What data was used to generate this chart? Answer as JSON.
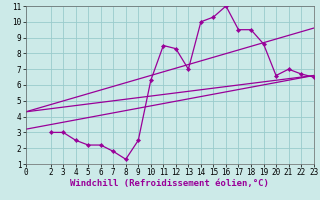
{
  "title": "",
  "xlabel": "Windchill (Refroidissement éolien,°C)",
  "ylabel": "",
  "bg_color": "#cceae8",
  "grid_color": "#99cccc",
  "line_color": "#990099",
  "data_x": [
    2,
    3,
    4,
    5,
    6,
    7,
    8,
    9,
    10,
    11,
    12,
    13,
    14,
    15,
    16,
    17,
    18,
    19,
    20,
    21,
    22,
    23
  ],
  "data_y": [
    3.0,
    3.0,
    2.5,
    2.2,
    2.2,
    1.8,
    1.3,
    2.5,
    6.3,
    8.5,
    8.3,
    7.0,
    10.0,
    10.3,
    11.0,
    9.5,
    9.5,
    8.6,
    6.6,
    7.0,
    6.7,
    6.5
  ],
  "line1_x": [
    0,
    23
  ],
  "line1_y": [
    4.3,
    9.6
  ],
  "line2_x": [
    0,
    23
  ],
  "line2_y": [
    4.3,
    6.6
  ],
  "line3_x": [
    0,
    23
  ],
  "line3_y": [
    3.2,
    6.6
  ],
  "xlim": [
    0,
    23
  ],
  "ylim": [
    1,
    11
  ],
  "xticks": [
    0,
    2,
    3,
    4,
    5,
    6,
    7,
    8,
    9,
    10,
    11,
    12,
    13,
    14,
    15,
    16,
    17,
    18,
    19,
    20,
    21,
    22,
    23
  ],
  "yticks": [
    1,
    2,
    3,
    4,
    5,
    6,
    7,
    8,
    9,
    10,
    11
  ],
  "tick_fontsize": 5.5,
  "xlabel_fontsize": 6.5
}
